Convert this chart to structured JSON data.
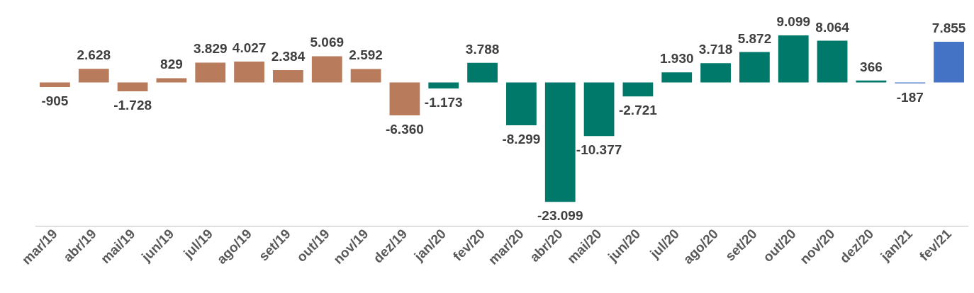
{
  "chart_data": {
    "type": "bar",
    "categories": [
      "mar/19",
      "abr/19",
      "mai/19",
      "jun/19",
      "jul/19",
      "ago/19",
      "set/19",
      "out/19",
      "nov/19",
      "dez/19",
      "jan/20",
      "fev/20",
      "mar/20",
      "abr/20",
      "mai/20",
      "jun/20",
      "jul/20",
      "ago/20",
      "set/20",
      "out/20",
      "nov/20",
      "dez/20",
      "jan/21",
      "fev/21"
    ],
    "values": [
      -905,
      2628,
      -1728,
      829,
      3829,
      4027,
      2384,
      5069,
      2592,
      -6360,
      -1173,
      3788,
      -8299,
      -23099,
      -10377,
      -2721,
      1930,
      3718,
      5872,
      9099,
      8064,
      366,
      -187,
      7855
    ],
    "value_labels": [
      "-905",
      "2.628",
      "-1.728",
      "829",
      "3.829",
      "4.027",
      "2.384",
      "5.069",
      "2.592",
      "-6.360",
      "-1.173",
      "3.788",
      "-8.299",
      "-23.099",
      "-10.377",
      "-2.721",
      "1.930",
      "3.718",
      "5.872",
      "9.099",
      "8.064",
      "366",
      "-187",
      "7.855"
    ],
    "colors": [
      "#b87b5b",
      "#b87b5b",
      "#b87b5b",
      "#b87b5b",
      "#b87b5b",
      "#b87b5b",
      "#b87b5b",
      "#b87b5b",
      "#b87b5b",
      "#b87b5b",
      "#00786a",
      "#00786a",
      "#00786a",
      "#00786a",
      "#00786a",
      "#00786a",
      "#00786a",
      "#00786a",
      "#00786a",
      "#00786a",
      "#00786a",
      "#00786a",
      "#4472c4",
      "#4472c4"
    ],
    "grid": false
  }
}
